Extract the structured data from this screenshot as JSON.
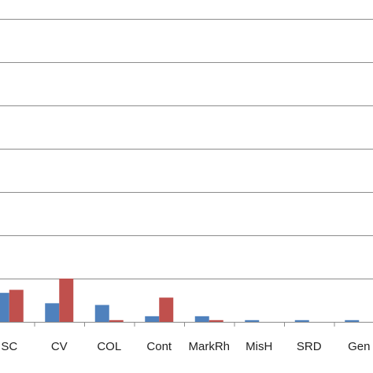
{
  "chart_data": {
    "type": "bar",
    "title": "",
    "xlabel": "",
    "ylabel": "",
    "categories": [
      "SC",
      "CV",
      "COL",
      "Cont",
      "MarkRh",
      "MisH",
      "SRD",
      "Gen"
    ],
    "ylim": [
      0,
      7
    ],
    "grid": true,
    "legend": "none",
    "series": [
      {
        "color": "#4f81bd",
        "values": [
          0.67,
          0.43,
          0.39,
          0.13,
          0.13,
          0.04,
          0.04,
          0.04
        ]
      },
      {
        "color": "#c0504d",
        "values": [
          0.74,
          1.0,
          0.04,
          0.56,
          0.04,
          0.0,
          0.0,
          0.0
        ]
      }
    ]
  }
}
